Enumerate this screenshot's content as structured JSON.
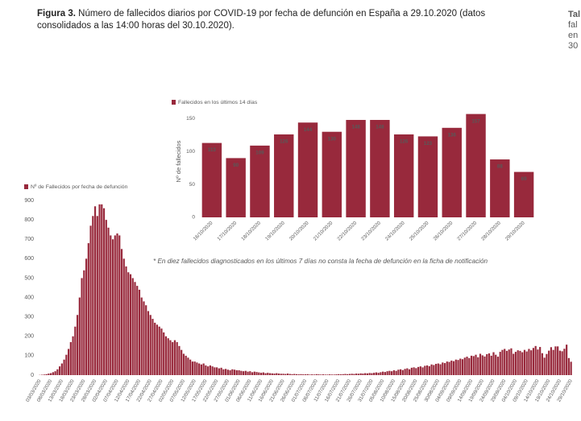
{
  "title": {
    "label": "Figura 3.",
    "text": "Número de fallecidos diarios por COVID-19 por fecha de defunción en España a 29.10.2020 (datos consolidados a las 14:00 horas del 30.10.2020)."
  },
  "side_text": [
    "Tal",
    "fal",
    "en",
    "30"
  ],
  "footnote": "* En diez fallecidos diagnosticados en los últimos 7 días no consta la fecha de defunción en la ficha de notificación",
  "chart_data": [
    {
      "type": "bar",
      "categories": [
        "03/03/2020",
        null,
        null,
        null,
        null,
        "08/03/2020",
        null,
        null,
        null,
        null,
        "13/03/2020",
        null,
        null,
        null,
        null,
        "18/03/2020",
        null,
        null,
        null,
        null,
        "23/03/2020",
        null,
        null,
        null,
        null,
        "28/03/2020",
        null,
        null,
        null,
        null,
        "02/04/2020",
        null,
        null,
        null,
        null,
        "07/04/2020",
        null,
        null,
        null,
        null,
        "12/04/2020",
        null,
        null,
        null,
        null,
        "17/04/2020",
        null,
        null,
        null,
        null,
        "22/04/2020",
        null,
        null,
        null,
        null,
        "27/04/2020",
        null,
        null,
        null,
        null,
        "02/05/2020",
        null,
        null,
        null,
        null,
        "07/05/2020",
        null,
        null,
        null,
        null,
        "12/05/2020",
        null,
        null,
        null,
        null,
        "17/05/2020",
        null,
        null,
        null,
        null,
        "22/05/2020",
        null,
        null,
        null,
        null,
        "27/05/2020",
        null,
        null,
        null,
        null,
        "01/06/2020",
        null,
        null,
        null,
        null,
        "06/06/2020",
        null,
        null,
        null,
        null,
        "11/06/2020",
        null,
        null,
        null,
        null,
        "16/06/2020",
        null,
        null,
        null,
        null,
        "21/06/2020",
        null,
        null,
        null,
        null,
        "26/06/2020",
        null,
        null,
        null,
        null,
        "01/07/2020",
        null,
        null,
        null,
        null,
        "06/07/2020",
        null,
        null,
        null,
        null,
        "11/07/2020",
        null,
        null,
        null,
        null,
        "16/07/2020",
        null,
        null,
        null,
        null,
        "21/07/2020",
        null,
        null,
        null,
        null,
        "26/07/2020",
        null,
        null,
        null,
        null,
        "31/07/2020",
        null,
        null,
        null,
        null,
        "05/08/2020",
        null,
        null,
        null,
        null,
        "10/08/2020",
        null,
        null,
        null,
        null,
        "15/08/2020",
        null,
        null,
        null,
        null,
        "20/08/2020",
        null,
        null,
        null,
        null,
        "25/08/2020",
        null,
        null,
        null,
        null,
        "30/08/2020",
        null,
        null,
        null,
        null,
        "04/09/2020",
        null,
        null,
        null,
        null,
        "09/09/2020",
        null,
        null,
        null,
        null,
        "14/09/2020",
        null,
        null,
        null,
        null,
        "19/09/2020",
        null,
        null,
        null,
        null,
        "24/09/2020",
        null,
        null,
        null,
        null,
        "29/09/2020",
        null,
        null,
        null,
        null,
        "04/10/2020",
        null,
        null,
        null,
        null,
        "09/10/2020",
        null,
        null,
        null,
        null,
        "14/10/2020",
        null,
        null,
        null,
        null,
        "19/10/2020",
        null,
        null,
        null,
        null,
        "24/10/2020",
        null,
        null,
        null,
        null,
        "29/10/2020"
      ],
      "series": [
        {
          "name": "Nº de Fallecidos por fecha de defunción",
          "color": "#98293c",
          "values": [
            1,
            2,
            3,
            5,
            8,
            10,
            15,
            20,
            30,
            45,
            60,
            80,
            105,
            135,
            170,
            200,
            250,
            310,
            400,
            500,
            540,
            600,
            680,
            770,
            820,
            870,
            820,
            880,
            880,
            860,
            800,
            760,
            720,
            700,
            720,
            730,
            720,
            650,
            600,
            560,
            530,
            520,
            500,
            480,
            460,
            440,
            400,
            380,
            360,
            330,
            310,
            290,
            270,
            260,
            250,
            240,
            220,
            200,
            190,
            180,
            170,
            180,
            170,
            150,
            130,
            110,
            100,
            90,
            80,
            70,
            70,
            65,
            60,
            55,
            60,
            50,
            45,
            50,
            45,
            40,
            40,
            35,
            38,
            30,
            32,
            28,
            25,
            30,
            28,
            25,
            25,
            22,
            20,
            22,
            18,
            20,
            15,
            18,
            16,
            14,
            12,
            14,
            10,
            12,
            10,
            9,
            8,
            10,
            8,
            7,
            7,
            6,
            8,
            6,
            5,
            6,
            5,
            4,
            5,
            4,
            4,
            5,
            3,
            4,
            3,
            5,
            4,
            3,
            4,
            3,
            3,
            4,
            3,
            3,
            4,
            5,
            4,
            5,
            6,
            5,
            6,
            7,
            6,
            8,
            7,
            9,
            8,
            10,
            9,
            11,
            10,
            12,
            14,
            12,
            15,
            18,
            16,
            20,
            22,
            20,
            25,
            22,
            28,
            30,
            26,
            32,
            35,
            30,
            38,
            40,
            36,
            42,
            45,
            40,
            48,
            50,
            46,
            55,
            52,
            58,
            60,
            56,
            65,
            62,
            70,
            68,
            75,
            72,
            80,
            78,
            85,
            82,
            90,
            95,
            88,
            100,
            98,
            105,
            92,
            110,
            102,
            96,
            108,
            112,
            100,
            118,
            105,
            95,
            120,
            130,
            135,
            125,
            132,
            138,
            110,
            120,
            128,
            125,
            118,
            130,
            122,
            135,
            128,
            140,
            150,
            132,
            145,
            113,
            90,
            109,
            126,
            144,
            130,
            148,
            148,
            126,
            123,
            136,
            157,
            88,
            69
          ]
        }
      ],
      "ylim": [
        0,
        950
      ],
      "yticks": [
        0,
        100,
        200,
        300,
        400,
        500,
        600,
        700,
        800,
        900
      ],
      "grid": false,
      "data_labels": false
    },
    {
      "type": "bar",
      "ylabel": "Nº de fallecidos",
      "categories": [
        "16/10/2020",
        "17/10/2020",
        "18/10/2020",
        "19/10/2020",
        "20/10/2020",
        "21/10/2020",
        "22/10/2020",
        "23/10/2020",
        "24/10/2020",
        "25/10/2020",
        "26/10/2020",
        "27/10/2020",
        "28/10/2020",
        "29/10/2020"
      ],
      "series": [
        {
          "name": "Fallecidos en los últimos 14 días",
          "color": "#98293c",
          "values": [
            113,
            90,
            109,
            126,
            144,
            130,
            148,
            148,
            126,
            123,
            136,
            157,
            88,
            69
          ]
        }
      ],
      "ylim": [
        0,
        170
      ],
      "yticks": [
        0,
        50,
        100,
        150
      ],
      "grid": false,
      "data_labels": true
    }
  ]
}
